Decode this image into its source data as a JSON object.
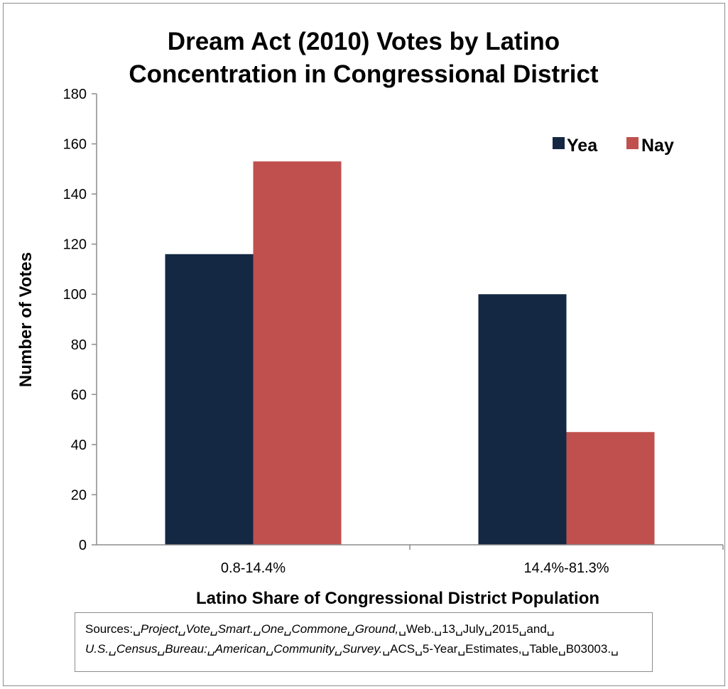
{
  "chart_data": {
    "type": "bar",
    "title_lines": [
      "Dream Act (2010) Votes by Latino",
      "Concentration in Congressional District"
    ],
    "xlabel": "Latino Share of Congressional District Population",
    "ylabel": "Number of Votes",
    "categories": [
      "0.8-14.4%",
      "14.4%-81.3%"
    ],
    "series": [
      {
        "name": "Yea",
        "values": [
          116,
          100
        ],
        "color": "#142843"
      },
      {
        "name": "Nay",
        "values": [
          153,
          45
        ],
        "color": "#c0504d"
      }
    ],
    "ylim": [
      0,
      180
    ],
    "yticks": [
      0,
      20,
      40,
      60,
      80,
      100,
      120,
      140,
      160,
      180
    ],
    "grid": false,
    "legend_position": "top-right"
  },
  "sources": {
    "line1": {
      "prefix": "Sources:␣",
      "italic": "Project␣Vote␣Smart.␣One␣Commone␣Ground,",
      "suffix": "␣Web.␣13␣July␣2015␣and␣"
    },
    "line2": {
      "italic": "U.S.␣Census␣Bureau:␣American␣Community␣Survey.",
      "suffix": "␣ACS␣5-Year␣Estimates,␣Table␣B03003.␣"
    }
  }
}
